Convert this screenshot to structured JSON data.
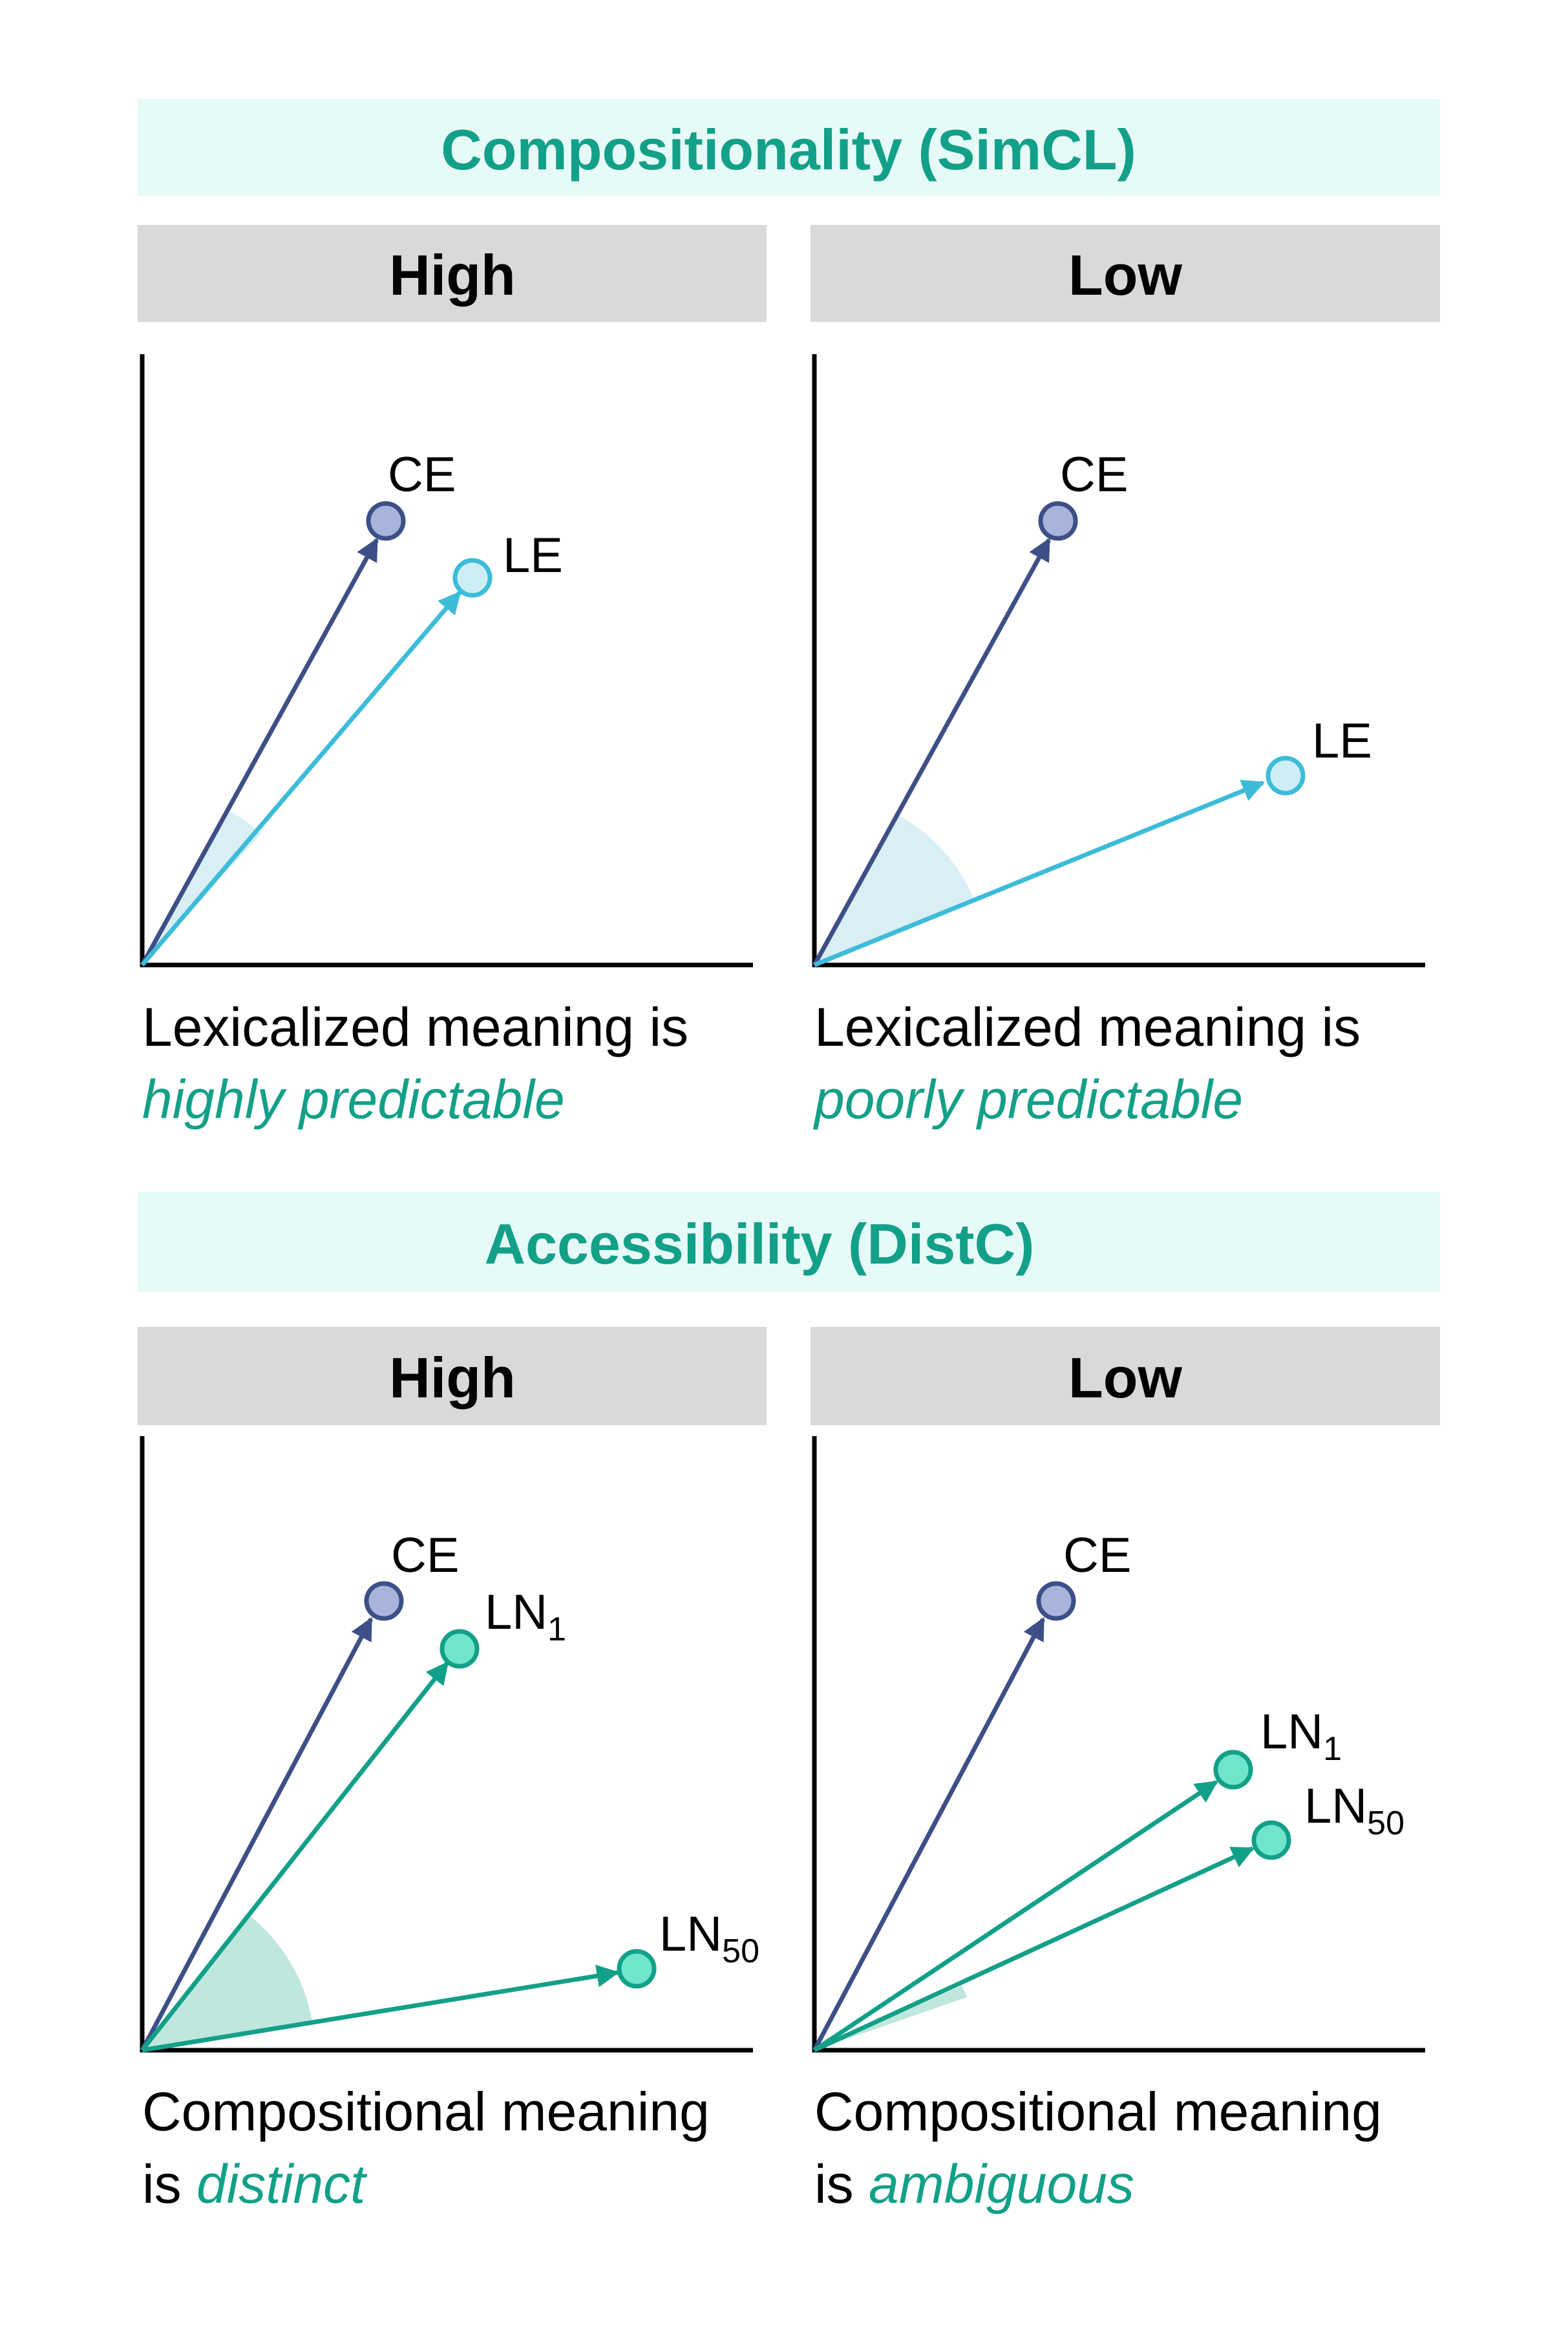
{
  "colors": {
    "banner_bg": "#e6fbf8",
    "banner_text": "#13a088",
    "header_bg": "#d9d9d9",
    "ce": "#3d4f86",
    "ce_fill": "#a9b4dc",
    "le": "#3cbcd8",
    "le_fill": "#cdeef5",
    "ln": "#13a088",
    "ln_fill": "#6fe6cc",
    "angle_le": "#daeef5",
    "angle_ln": "#bfe7de",
    "accent_text": "#13a088"
  },
  "sections": [
    {
      "title": "Compositionality (SimCL)",
      "panels": [
        {
          "header": "High",
          "vectors": [
            {
              "label": "CE",
              "kind": "ce"
            },
            {
              "label": "LE",
              "kind": "le"
            }
          ],
          "caption_line1": "Lexicalized meaning is",
          "caption_line2_prefix": "",
          "caption_emphasis": "highly predictable"
        },
        {
          "header": "Low",
          "vectors": [
            {
              "label": "CE",
              "kind": "ce"
            },
            {
              "label": "LE",
              "kind": "le"
            }
          ],
          "caption_line1": "Lexicalized meaning is",
          "caption_line2_prefix": "",
          "caption_emphasis": "poorly predictable"
        }
      ]
    },
    {
      "title": "Accessibility (DistC)",
      "panels": [
        {
          "header": "High",
          "vectors": [
            {
              "label": "CE",
              "kind": "ce"
            },
            {
              "label": "LN",
              "subscript": "1",
              "kind": "ln"
            },
            {
              "label": "LN",
              "subscript": "50",
              "kind": "ln"
            }
          ],
          "caption_line1": "Compositional meaning",
          "caption_line2_prefix": "is ",
          "caption_emphasis": "distinct"
        },
        {
          "header": "Low",
          "vectors": [
            {
              "label": "CE",
              "kind": "ce"
            },
            {
              "label": "LN",
              "subscript": "1",
              "kind": "ln"
            },
            {
              "label": "LN",
              "subscript": "50",
              "kind": "ln"
            }
          ],
          "caption_line1": "Compositional meaning",
          "caption_line2_prefix": "is ",
          "caption_emphasis": "ambiguous"
        }
      ]
    }
  ]
}
